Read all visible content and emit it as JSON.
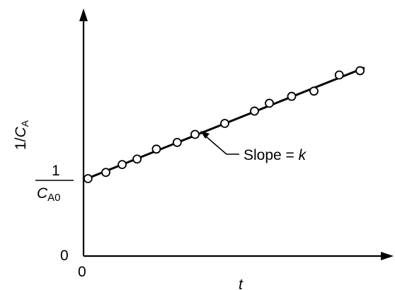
{
  "chart_data": {
    "type": "scatter",
    "title": "",
    "xlabel": "t",
    "ylabel": "1/C_A",
    "ylabel_parts": {
      "main": "1/",
      "var": "C",
      "sub": "A"
    },
    "x_tick_labels": [
      "0"
    ],
    "y_tick_labels": [
      "0"
    ],
    "intercept_label": {
      "num": "1",
      "den_var": "C",
      "den_sub": "A0"
    },
    "annotation": {
      "text": "Slope = ",
      "var": "k"
    },
    "xlim": [
      0,
      10
    ],
    "ylim": [
      0,
      10
    ],
    "grid": false,
    "legend": "none",
    "line": {
      "intercept": 3.2,
      "slope": 0.5
    },
    "points": [
      {
        "x": 0.15,
        "y": 3.26
      },
      {
        "x": 0.75,
        "y": 3.52
      },
      {
        "x": 1.3,
        "y": 3.85
      },
      {
        "x": 1.8,
        "y": 4.08
      },
      {
        "x": 2.45,
        "y": 4.5
      },
      {
        "x": 3.15,
        "y": 4.78
      },
      {
        "x": 3.75,
        "y": 5.12
      },
      {
        "x": 4.75,
        "y": 5.58
      },
      {
        "x": 5.75,
        "y": 6.1
      },
      {
        "x": 6.25,
        "y": 6.43
      },
      {
        "x": 7.0,
        "y": 6.72
      },
      {
        "x": 7.75,
        "y": 6.94
      },
      {
        "x": 8.6,
        "y": 7.62
      },
      {
        "x": 9.3,
        "y": 7.8
      }
    ]
  }
}
